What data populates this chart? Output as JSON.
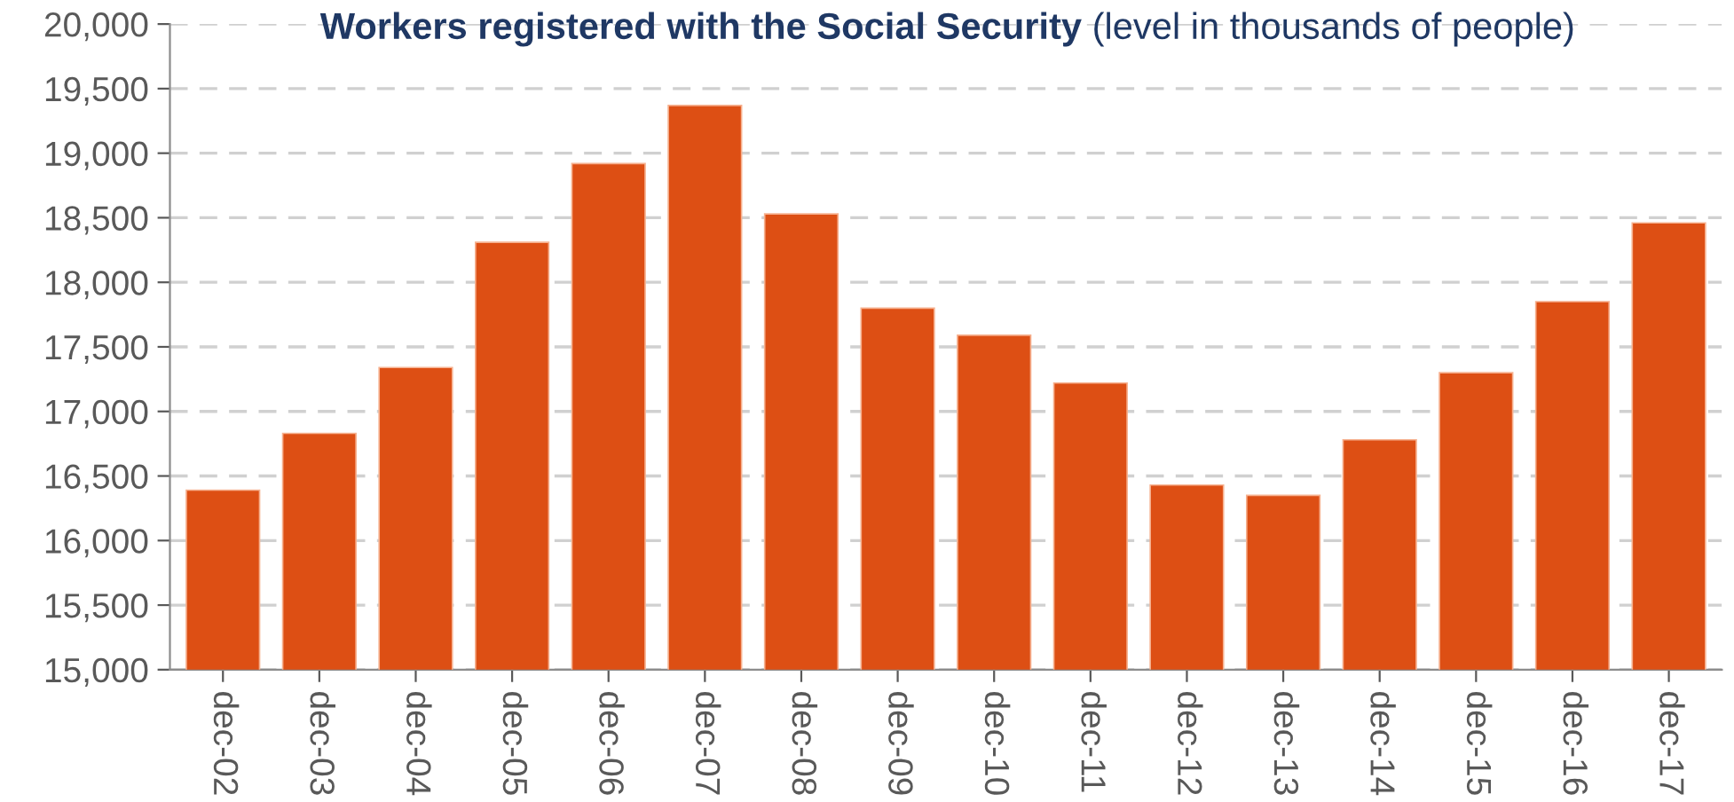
{
  "chart_data": {
    "type": "bar",
    "title": "Workers registered with the Social Security",
    "subtitle": "(level in thousands of people)",
    "categories": [
      "dec-02",
      "dec-03",
      "dec-04",
      "dec-05",
      "dec-06",
      "dec-07",
      "dec-08",
      "dec-09",
      "dec-10",
      "dec-11",
      "dec-12",
      "dec-13",
      "dec-14",
      "dec-15",
      "dec-16",
      "dec-17"
    ],
    "values": [
      16390,
      16830,
      17340,
      18310,
      18920,
      19370,
      18530,
      17800,
      17590,
      17220,
      16430,
      16350,
      16780,
      17300,
      17850,
      18460
    ],
    "color": "#dd4f14",
    "ylim": [
      15000,
      20000
    ],
    "yticks": [
      {
        "value": 15000,
        "label": "15,000"
      },
      {
        "value": 15500,
        "label": "15,500"
      },
      {
        "value": 16000,
        "label": "16,000"
      },
      {
        "value": 16500,
        "label": "16,500"
      },
      {
        "value": 17000,
        "label": "17,000"
      },
      {
        "value": 17500,
        "label": "17,500"
      },
      {
        "value": 18000,
        "label": "18,000"
      },
      {
        "value": 18500,
        "label": "18,500"
      },
      {
        "value": 19000,
        "label": "19,000"
      },
      {
        "value": 19500,
        "label": "19,500"
      },
      {
        "value": 20000,
        "label": "20,000"
      }
    ],
    "grid": "y"
  }
}
